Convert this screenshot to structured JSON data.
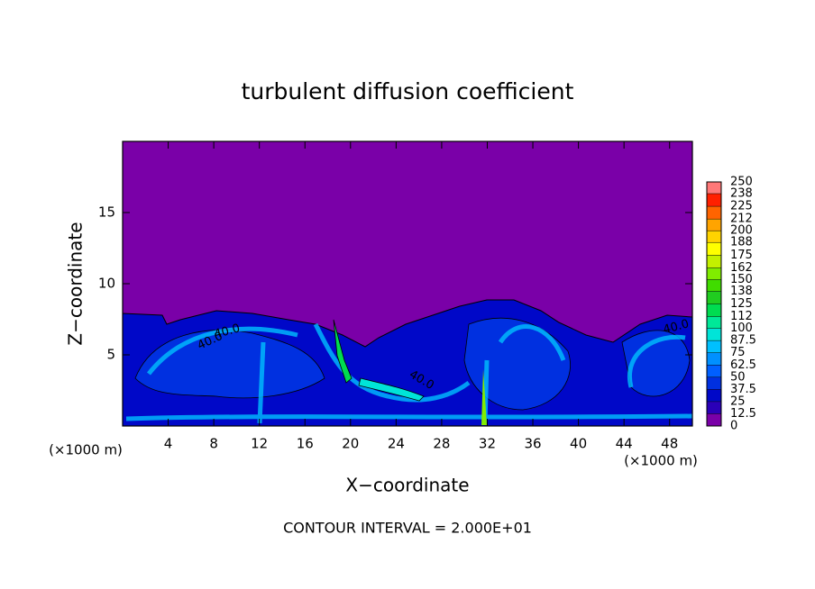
{
  "chart_data": {
    "type": "contour",
    "title": "turbulent diffusion coefficient",
    "xlabel": "X−coordinate",
    "ylabel": "Z−coordinate",
    "x_unit": "(×1000 m)",
    "y_unit": "(×1000 m)",
    "footnote": "CONTOUR INTERVAL = 2.000E+01",
    "xlim": [
      0,
      50
    ],
    "xticks": [
      4,
      8,
      12,
      16,
      20,
      24,
      28,
      32,
      36,
      40,
      44,
      48
    ],
    "ylim": [
      0,
      20
    ],
    "yticks": [
      5,
      10,
      15
    ],
    "contour_labels": [
      "40.0",
      "40.0",
      "40.0",
      "40.0"
    ],
    "colorbar": {
      "levels": [
        0,
        12.5,
        25,
        37.5,
        50,
        62.5,
        75,
        87.5,
        100,
        112,
        125,
        138,
        150,
        162,
        175,
        188,
        200,
        212,
        225,
        238,
        250
      ],
      "colors": [
        "#7a00a8",
        "#2a00b8",
        "#0008c8",
        "#0030e0",
        "#0060ff",
        "#0090ff",
        "#00c0ff",
        "#00e4d8",
        "#00e898",
        "#00dc50",
        "#20cc20",
        "#40dc00",
        "#80ec00",
        "#c4f000",
        "#ffff00",
        "#ffd400",
        "#ffa400",
        "#ff6400",
        "#ff2000",
        "#ff7878"
      ]
    }
  }
}
